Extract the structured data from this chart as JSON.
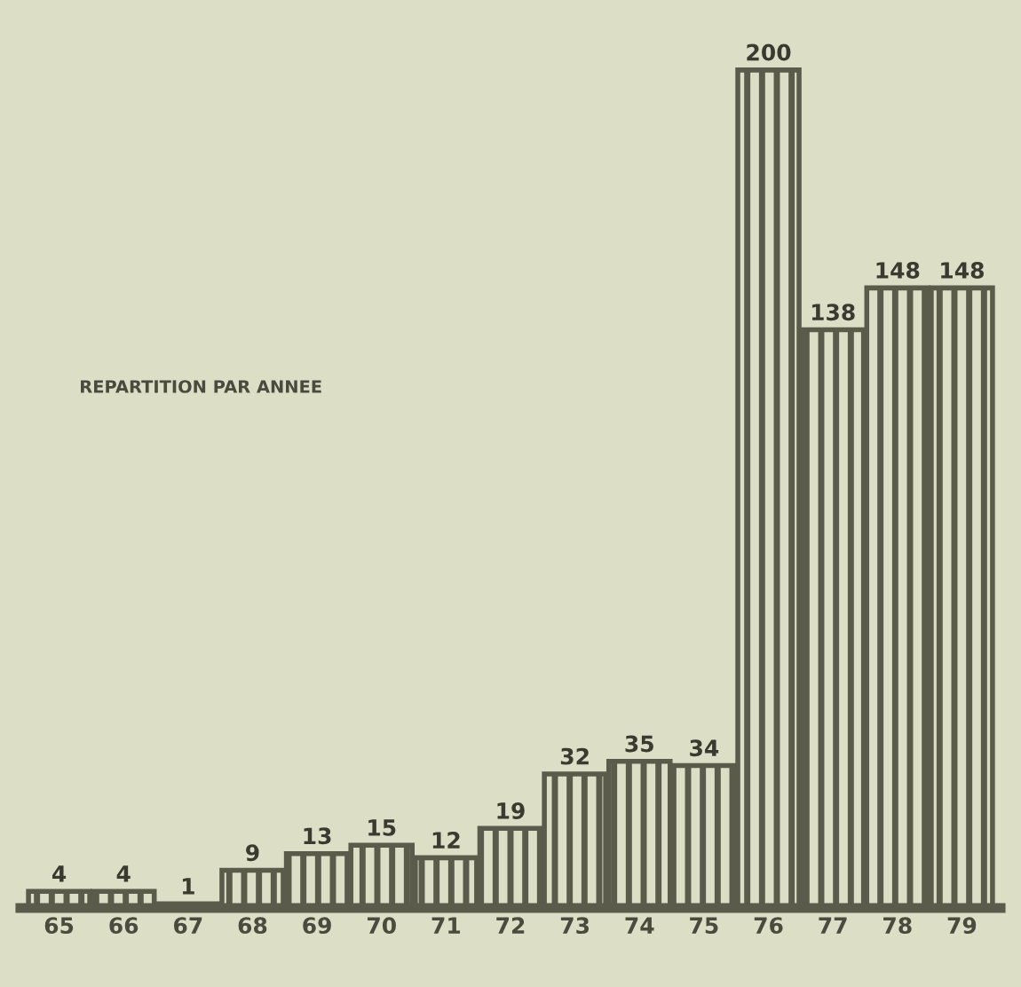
{
  "chart_data": {
    "type": "bar",
    "title": "REPARTITION PAR ANNEE",
    "categories": [
      "65",
      "66",
      "67",
      "68",
      "69",
      "70",
      "71",
      "72",
      "73",
      "74",
      "75",
      "76",
      "77",
      "78",
      "79"
    ],
    "values": [
      4,
      4,
      1,
      9,
      13,
      15,
      12,
      19,
      32,
      35,
      34,
      200,
      138,
      148,
      148
    ],
    "color": "#5b5b4c",
    "data_labels": true
  }
}
